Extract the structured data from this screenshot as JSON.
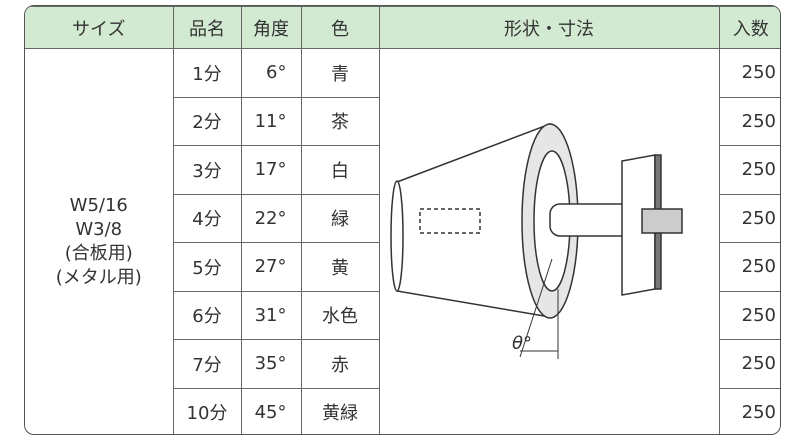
{
  "header": [
    "サイズ",
    "品名",
    "角度",
    "色",
    "形状・寸法",
    "入数"
  ],
  "size": [
    "W5/16",
    "W3/8",
    "(合板用)",
    "(メタル用)"
  ],
  "rows": [
    [
      "1分",
      "6°",
      "青",
      "250"
    ],
    [
      "2分",
      "11°",
      "茶",
      "250"
    ],
    [
      "3分",
      "17°",
      "白",
      "250"
    ],
    [
      "4分",
      "22°",
      "緑",
      "250"
    ],
    [
      "5分",
      "27°",
      "黄",
      "250"
    ],
    [
      "6分",
      "31°",
      "水色",
      "250"
    ],
    [
      "7分",
      "35°",
      "赤",
      "250"
    ],
    [
      "10分",
      "45°",
      "黄緑",
      "250"
    ]
  ],
  "diagram": {
    "label": "θ°"
  }
}
